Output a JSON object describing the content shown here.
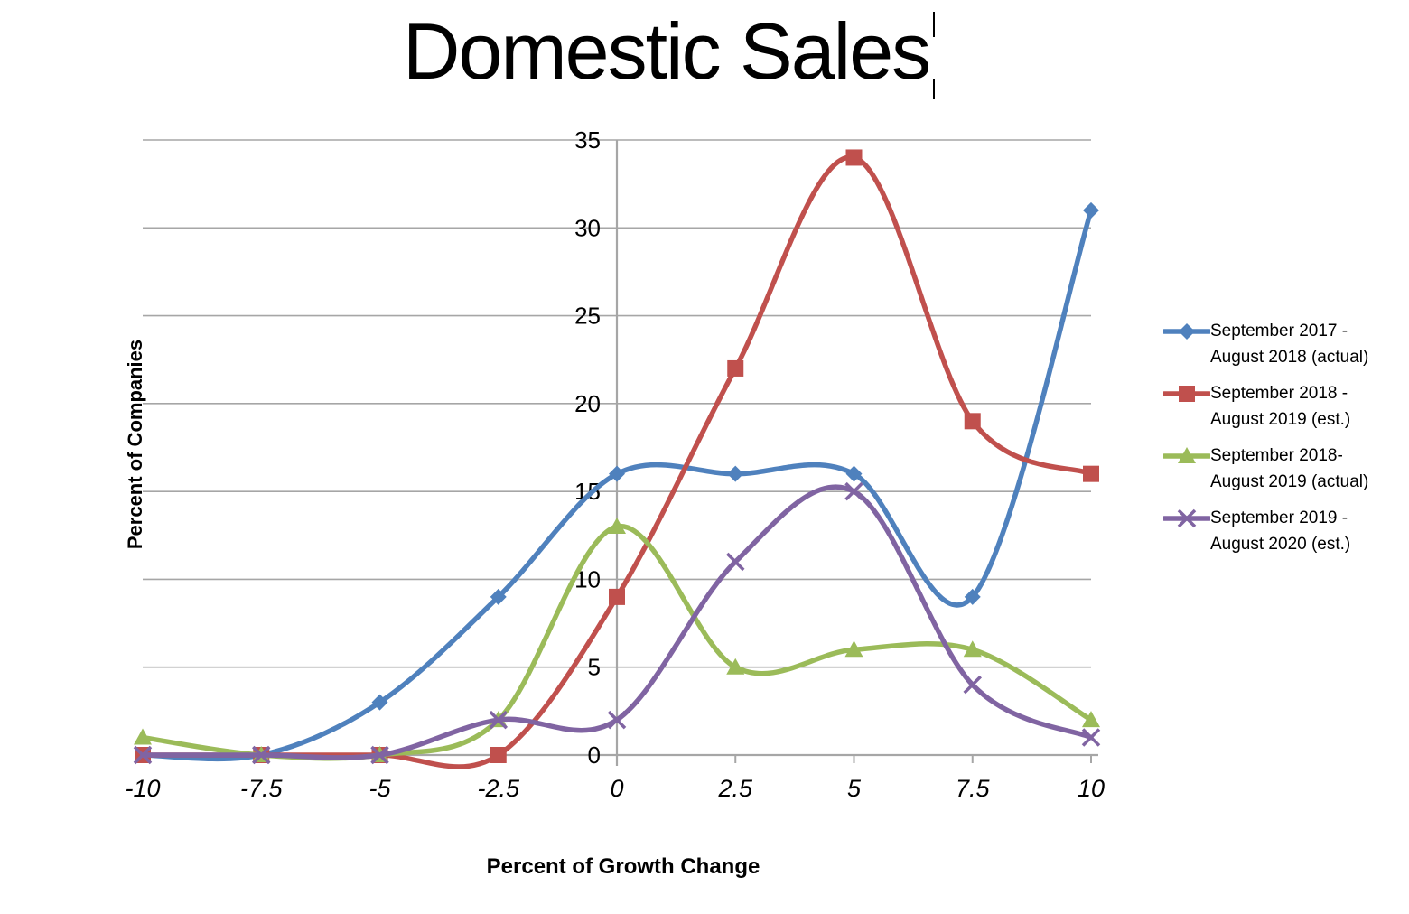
{
  "title": "Domestic Sales",
  "axes": {
    "x_title": "Percent of Growth Change",
    "y_title": "Percent of Companies"
  },
  "chart_data": {
    "type": "line",
    "smooth": true,
    "title": "Domestic Sales",
    "xlabel": "Percent of Growth Change",
    "ylabel": "Percent of Companies",
    "x": [
      -10,
      -7.5,
      -5,
      -2.5,
      0,
      2.5,
      5,
      7.5,
      10
    ],
    "x_tick_labels": [
      "-10",
      "-7.5",
      "-5",
      "-2.5",
      "0",
      "2.5",
      "5",
      "7.5",
      "10"
    ],
    "y_ticks": [
      0,
      5,
      10,
      15,
      20,
      25,
      30,
      35
    ],
    "y_tick_labels": [
      "0",
      "5",
      "10",
      "15",
      "20",
      "25",
      "30",
      "35"
    ],
    "xlim": [
      -10,
      10
    ],
    "ylim": [
      0,
      35
    ],
    "grid": "horizontal",
    "legend_position": "right",
    "series": [
      {
        "name": "September 2017 - August 2018 (actual)",
        "legend_lines": [
          "September 2017 -",
          "August 2018 (actual)"
        ],
        "color": "#4F81BD",
        "marker": "diamond",
        "values": [
          0,
          0,
          3,
          9,
          16,
          16,
          16,
          9,
          31
        ]
      },
      {
        "name": "September 2018 - August 2019 (est.)",
        "legend_lines": [
          "September 2018 -",
          "August 2019 (est.)"
        ],
        "color": "#C0504D",
        "marker": "square",
        "values": [
          0,
          0,
          0,
          0,
          9,
          22,
          34,
          19,
          16
        ]
      },
      {
        "name": "September 2018- August 2019 (actual)",
        "legend_lines": [
          "September 2018-",
          "August 2019 (actual)"
        ],
        "color": "#9BBB59",
        "marker": "triangle",
        "values": [
          1,
          0,
          0,
          2,
          13,
          5,
          6,
          6,
          2
        ]
      },
      {
        "name": "September 2019 - August 2020 (est.)",
        "legend_lines": [
          "September 2019 -",
          "August 2020 (est.)"
        ],
        "color": "#8064A2",
        "marker": "x",
        "values": [
          0,
          0,
          0,
          2,
          2,
          11,
          15,
          4,
          1
        ]
      }
    ]
  },
  "colors": {
    "gridline": "#A6A6A6",
    "axis": "#A6A6A6",
    "text": "#000000",
    "background": "#FFFFFF"
  }
}
